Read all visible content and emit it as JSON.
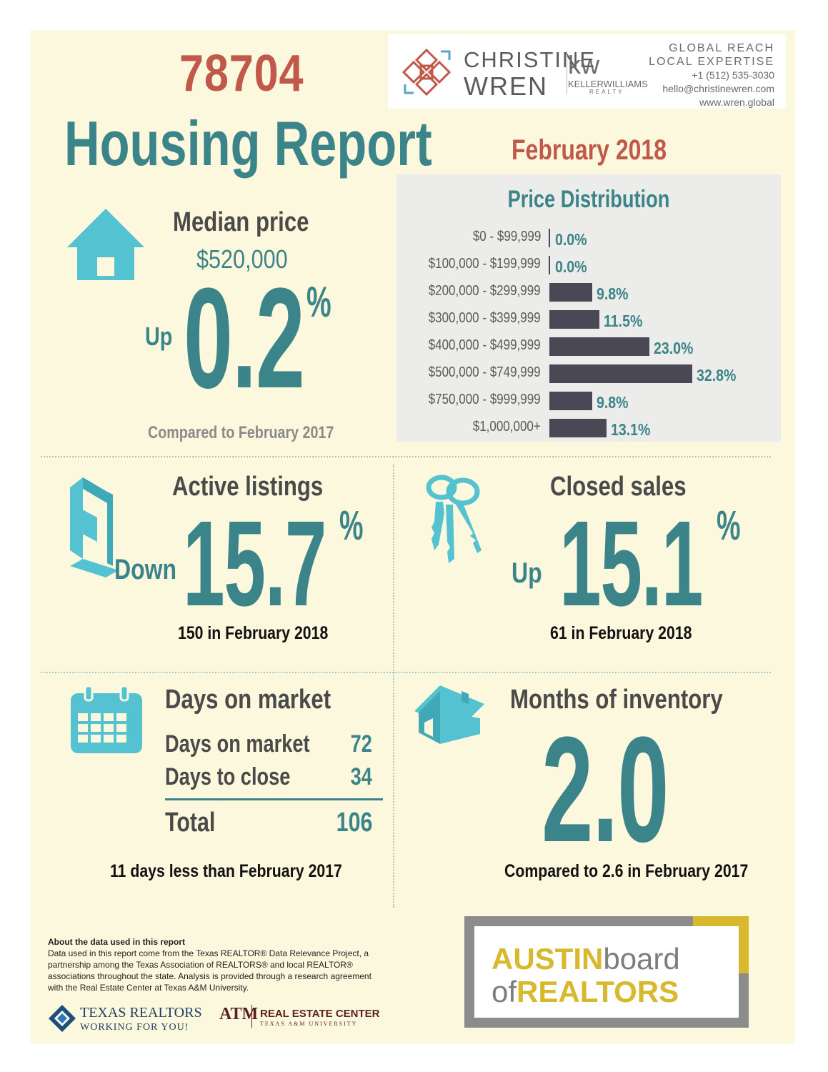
{
  "header": {
    "zip": "78704",
    "title": "Housing Report",
    "date": "February 2018"
  },
  "agent": {
    "first_name": "CHRISTINE",
    "last_name": "WREN",
    "brokerage_mark": "kw",
    "brokerage_name": "KELLERWILLIAMS",
    "brokerage_sub": "REALTY",
    "tagline_1": "GLOBAL REACH",
    "tagline_2": "LOCAL EXPERTISE",
    "phone": "+1 (512) 535-3030",
    "email": "hello@christinewren.com",
    "website": "www.wren.global"
  },
  "median": {
    "title": "Median price",
    "price": "$520,000",
    "direction": "Up",
    "change": "0.2",
    "pct_sign": "%",
    "compare": "Compared to February 2017"
  },
  "price_distribution": {
    "title": "Price Distribution"
  },
  "chart_data": {
    "type": "bar",
    "title": "Price Distribution",
    "orientation": "horizontal",
    "categories": [
      "$0 - $99,999",
      "$100,000 - $199,999",
      "$200,000 - $299,999",
      "$300,000 - $399,999",
      "$400,000 - $499,999",
      "$500,000 - $749,999",
      "$750,000 - $999,999",
      "$1,000,000+"
    ],
    "values": [
      0.0,
      0.0,
      9.8,
      11.5,
      23.0,
      32.8,
      9.8,
      13.1
    ],
    "value_labels": [
      "0.0%",
      "0.0%",
      "9.8%",
      "11.5%",
      "23.0%",
      "32.8%",
      "9.8%",
      "13.1%"
    ],
    "xlim": [
      0,
      32.8
    ],
    "bar_color": "#4b4856",
    "label_color": "#3b8489"
  },
  "active_listings": {
    "title": "Active listings",
    "direction": "Down",
    "change": "15.7",
    "pct_sign": "%",
    "note": "150 in February 2018"
  },
  "closed_sales": {
    "title": "Closed sales",
    "direction": "Up",
    "change": "15.1",
    "pct_sign": "%",
    "note": "61 in February 2018"
  },
  "days_on_market": {
    "title": "Days on market",
    "rows": [
      {
        "label": "Days on market",
        "value": "72"
      },
      {
        "label": "Days to close",
        "value": "34"
      }
    ],
    "total_label": "Total",
    "total_value": "106",
    "note": "11 days less than February 2017"
  },
  "months_inventory": {
    "title": "Months of inventory",
    "value": "2.0",
    "note": "Compared to 2.6 in February 2017"
  },
  "about": {
    "heading": "About the data used in this report",
    "body": "Data used in this report come from the Texas REALTOR® Data Relevance Project, a partnership among the Texas Association of REALTORS® and local REALTOR® associations throughout the state. Analysis is provided through a research agreement with the Real Estate Center at Texas A&M University."
  },
  "footer_logos": {
    "texas_realtors": "TEXAS REALTORS",
    "texas_realtors_sub": "WORKING FOR YOU!",
    "rec_mark": "ATM",
    "rec_name": "REAL ESTATE CENTER",
    "rec_sub": "TEXAS A&M UNIVERSITY",
    "abor_austin": "AUSTIN",
    "abor_board": "board",
    "abor_of": "of",
    "abor_realtors": "REALTORS"
  },
  "colors": {
    "background": "#fcf8dd",
    "teal": "#3b8489",
    "accent_red": "#c0594a",
    "icon_blue": "#54c2d1",
    "bar": "#4b4856",
    "abor_gold": "#d8b92e"
  },
  "icons": [
    "house-icon",
    "sign-post-icon",
    "keys-icon",
    "calendar-icon",
    "home-3d-icon",
    "christine-wren-logo",
    "texas-realtors-logo",
    "atm-logo"
  ]
}
